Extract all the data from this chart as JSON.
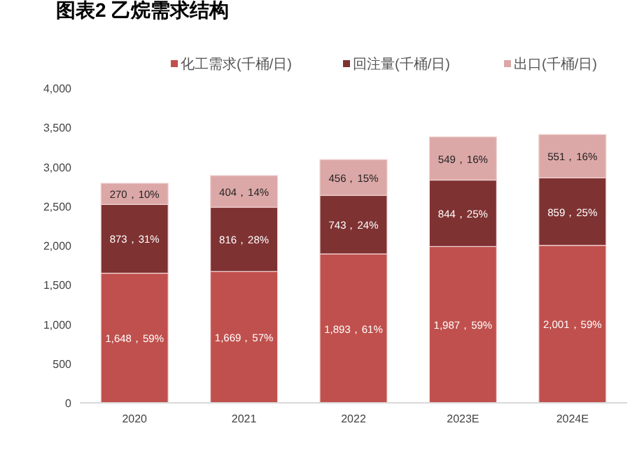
{
  "chart_data": {
    "type": "bar",
    "title": "图表2 乙烷需求结构",
    "stacked": true,
    "legend": "top",
    "categories": [
      "2020",
      "2021",
      "2022",
      "2023E",
      "2024E"
    ],
    "ylim": [
      0,
      4000
    ],
    "yticks": [
      0,
      500,
      {
        "value": 1000,
        "label": "1,000"
      },
      {
        "value": 1500,
        "label": "1,500"
      },
      {
        "value": 2000,
        "label": "2,000"
      },
      {
        "value": 2500,
        "label": "2,500"
      },
      {
        "value": 3000,
        "label": "3,000"
      },
      {
        "value": 3500,
        "label": "3,500"
      },
      {
        "value": 4000,
        "label": "4,000"
      }
    ],
    "series": [
      {
        "name": "化工需求(千桶/日)",
        "color": "#c0504d",
        "values": [
          1648,
          1669,
          1893,
          1987,
          2001
        ],
        "value_labels": [
          "1,648，59%",
          "1,669，57%",
          "1,893，61%",
          "1,987，59%",
          "2,001，59%"
        ]
      },
      {
        "name": "回注量(千桶/日)",
        "color": "#7f3232",
        "values": [
          873,
          816,
          743,
          844,
          859
        ],
        "value_labels": [
          "873，31%",
          "816，28%",
          "743，24%",
          "844，25%",
          "859，25%"
        ]
      },
      {
        "name": "出口(千桶/日)",
        "color": "#dca8a7",
        "values": [
          270,
          404,
          456,
          549,
          551
        ],
        "value_labels": [
          "270，10%",
          "404，14%",
          "456，15%",
          "549，16%",
          "551，16%"
        ]
      }
    ]
  }
}
